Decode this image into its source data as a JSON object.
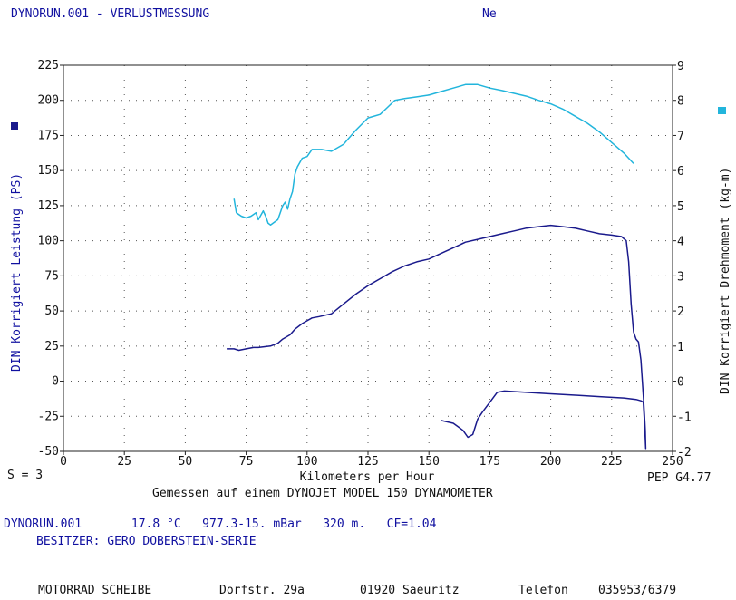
{
  "header": {
    "title": "DYNORUN.001 - VERLUSTMESSUNG",
    "tag": "Ne"
  },
  "colors": {
    "power": "#1a1a8c",
    "torque": "#22b5dc",
    "text_blue": "#1010a0",
    "grid": "#555555"
  },
  "icons": {
    "left_legend": "power-legend-square",
    "right_legend": "torque-legend-square"
  },
  "footer": {
    "smoothing": "S = 3",
    "pep": "PEP G4.77",
    "measured": "Gemessen auf einem DYNOJET MODEL 150 DYNAMOMETER",
    "run_info": "DYNORUN.001       17.8 °C   977.3-15. mBar   320 m.   CF=1.04",
    "owner": "BESITZER: GERO DOBERSTEIN-SERIE",
    "shop": "MOTORRAD SCHEIBE",
    "street": "Dorfstr. 29a",
    "city": "01920 Saeuritz",
    "phone_label": "Telefon",
    "phone": "035953/6379"
  },
  "chart_data": {
    "type": "line",
    "xlabel": "Kilometers per Hour",
    "ylabel": "DIN Korrigiert Leistung (PS)",
    "y2label": "DIN Korrigiert Drehmoment (kg-m)",
    "xlim": [
      0,
      250
    ],
    "ylim": [
      -50,
      225
    ],
    "y2lim": [
      -2,
      9
    ],
    "x_ticks": [
      0,
      25,
      50,
      75,
      100,
      125,
      150,
      175,
      200,
      225,
      250
    ],
    "y_ticks": [
      -50,
      -25,
      0,
      25,
      50,
      75,
      100,
      125,
      150,
      175,
      200,
      225
    ],
    "y2_ticks": [
      -2,
      -1,
      0,
      1,
      2,
      3,
      4,
      5,
      6,
      7,
      8,
      9
    ],
    "grid": true,
    "series": [
      {
        "axis": "y2",
        "color": "torque",
        "points": [
          [
            70,
            5.2
          ],
          [
            71,
            4.8
          ],
          [
            73,
            4.7
          ],
          [
            75,
            4.65
          ],
          [
            77,
            4.7
          ],
          [
            79,
            4.8
          ],
          [
            80,
            4.6
          ],
          [
            82,
            4.85
          ],
          [
            83,
            4.7
          ],
          [
            84,
            4.5
          ],
          [
            85,
            4.45
          ],
          [
            86,
            4.5
          ],
          [
            88,
            4.6
          ],
          [
            89,
            4.8
          ],
          [
            90,
            5.0
          ],
          [
            91,
            5.1
          ],
          [
            92,
            4.9
          ],
          [
            93,
            5.2
          ],
          [
            94,
            5.4
          ],
          [
            95,
            5.9
          ],
          [
            96,
            6.1
          ],
          [
            98,
            6.35
          ],
          [
            100,
            6.4
          ],
          [
            102,
            6.6
          ],
          [
            106,
            6.6
          ],
          [
            110,
            6.55
          ],
          [
            115,
            6.75
          ],
          [
            120,
            7.15
          ],
          [
            125,
            7.5
          ],
          [
            130,
            7.6
          ],
          [
            133,
            7.8
          ],
          [
            136,
            8.0
          ],
          [
            140,
            8.05
          ],
          [
            145,
            8.1
          ],
          [
            150,
            8.15
          ],
          [
            155,
            8.25
          ],
          [
            160,
            8.35
          ],
          [
            165,
            8.45
          ],
          [
            170,
            8.45
          ],
          [
            175,
            8.35
          ],
          [
            180,
            8.28
          ],
          [
            185,
            8.2
          ],
          [
            190,
            8.12
          ],
          [
            195,
            8.0
          ],
          [
            200,
            7.9
          ],
          [
            205,
            7.75
          ],
          [
            210,
            7.55
          ],
          [
            215,
            7.35
          ],
          [
            220,
            7.1
          ],
          [
            225,
            6.8
          ],
          [
            230,
            6.5
          ],
          [
            234,
            6.2
          ]
        ]
      },
      {
        "axis": "y",
        "color": "power",
        "points": [
          [
            67,
            23
          ],
          [
            70,
            23
          ],
          [
            72,
            22
          ],
          [
            75,
            23
          ],
          [
            78,
            24
          ],
          [
            80,
            24
          ],
          [
            85,
            25
          ],
          [
            88,
            27
          ],
          [
            90,
            30
          ],
          [
            93,
            33
          ],
          [
            95,
            37
          ],
          [
            98,
            41
          ],
          [
            100,
            43
          ],
          [
            102,
            45
          ],
          [
            105,
            46
          ],
          [
            110,
            48
          ],
          [
            115,
            55
          ],
          [
            120,
            62
          ],
          [
            125,
            68
          ],
          [
            130,
            73
          ],
          [
            135,
            78
          ],
          [
            140,
            82
          ],
          [
            145,
            85
          ],
          [
            150,
            87
          ],
          [
            155,
            91
          ],
          [
            160,
            95
          ],
          [
            165,
            99
          ],
          [
            170,
            101
          ],
          [
            175,
            103
          ],
          [
            180,
            105
          ],
          [
            185,
            107
          ],
          [
            190,
            109
          ],
          [
            195,
            110
          ],
          [
            200,
            111
          ],
          [
            205,
            110
          ],
          [
            210,
            109
          ],
          [
            215,
            107
          ],
          [
            220,
            105
          ],
          [
            225,
            104
          ],
          [
            229,
            103
          ],
          [
            231,
            100
          ],
          [
            232,
            85
          ],
          [
            233,
            55
          ],
          [
            234,
            35
          ],
          [
            235,
            30
          ],
          [
            236,
            28
          ],
          [
            237,
            15
          ],
          [
            238,
            -10
          ],
          [
            238.5,
            -25
          ],
          [
            238.8,
            -35
          ],
          [
            239,
            -48
          ],
          [
            238.5,
            -30
          ],
          [
            238,
            -15
          ],
          [
            237,
            -14
          ],
          [
            235,
            -13
          ],
          [
            230,
            -12
          ],
          [
            220,
            -11
          ],
          [
            210,
            -10
          ],
          [
            200,
            -9
          ],
          [
            190,
            -8
          ],
          [
            181,
            -7
          ],
          [
            178,
            -8
          ],
          [
            175,
            -15
          ],
          [
            172,
            -22
          ],
          [
            170,
            -27
          ],
          [
            168,
            -38
          ],
          [
            166,
            -40
          ],
          [
            164,
            -35
          ],
          [
            160,
            -30
          ],
          [
            155,
            -28
          ]
        ]
      }
    ]
  }
}
